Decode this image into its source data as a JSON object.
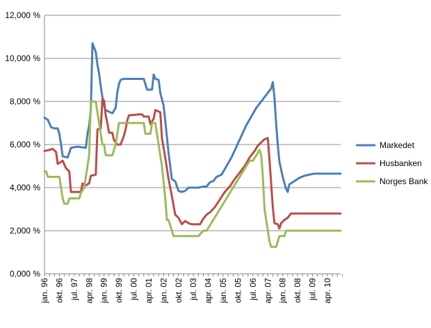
{
  "chart_data": {
    "type": "line",
    "title": "",
    "xlabel": "",
    "ylabel": "",
    "ylim": [
      0,
      12
    ],
    "y_ticks": [
      {
        "value": 0,
        "label": "0,000 %"
      },
      {
        "value": 2,
        "label": "2,000 %"
      },
      {
        "value": 4,
        "label": "4,000 %"
      },
      {
        "value": 6,
        "label": "6,000 %"
      },
      {
        "value": 8,
        "label": "8,000 %"
      },
      {
        "value": 10,
        "label": "10,000 %"
      },
      {
        "value": 12,
        "label": "12,000 %"
      }
    ],
    "grid": "horizontal",
    "legend_position": "right",
    "x_ticks": [
      "jan. 96",
      "okt. 96",
      "jul. 97",
      "apr. 98",
      "jan. 99",
      "okt. 99",
      "jul. 00",
      "apr. 01",
      "jan. 02",
      "okt. 02",
      "jul. 03",
      "apr. 04",
      "jan. 05",
      "okt. 05",
      "jul. 06",
      "apr. 07",
      "jan. 08",
      "okt. 08",
      "jul. 09",
      "apr. 10"
    ],
    "x_range": [
      "jan. 96",
      "des. 10"
    ],
    "series": [
      {
        "name": "Markedet",
        "color": "#4a7ebb",
        "points": [
          [
            "jan. 96",
            7.25
          ],
          [
            "mar. 96",
            7.15
          ],
          [
            "mai 96",
            6.8
          ],
          [
            "jul. 96",
            6.75
          ],
          [
            "sep. 96",
            6.75
          ],
          [
            "okt. 96",
            6.5
          ],
          [
            "nov. 96",
            6.0
          ],
          [
            "des. 96",
            5.45
          ],
          [
            "mar. 97",
            5.4
          ],
          [
            "mai 97",
            5.85
          ],
          [
            "sep. 97",
            5.9
          ],
          [
            "feb. 98",
            5.85
          ],
          [
            "mar. 98",
            6.5
          ],
          [
            "apr. 98",
            6.9
          ],
          [
            "mai 98",
            7.6
          ],
          [
            "jun. 98",
            10.7
          ],
          [
            "jul. 98",
            10.5
          ],
          [
            "aug. 98",
            10.3
          ],
          [
            "sep. 98",
            9.7
          ],
          [
            "okt. 98",
            9.3
          ],
          [
            "nov. 98",
            8.7
          ],
          [
            "des. 98",
            8.2
          ],
          [
            "jan. 99",
            7.8
          ],
          [
            "feb. 99",
            7.6
          ],
          [
            "jun. 99",
            7.45
          ],
          [
            "aug. 99",
            7.7
          ],
          [
            "sep. 99",
            8.4
          ],
          [
            "okt. 99",
            8.8
          ],
          [
            "nov. 99",
            9.0
          ],
          [
            "jan. 00",
            9.05
          ],
          [
            "jul. 00",
            9.05
          ],
          [
            "jan. 01",
            9.05
          ],
          [
            "mar. 01",
            8.55
          ],
          [
            "jun. 01",
            8.55
          ],
          [
            "jul. 01",
            9.25
          ],
          [
            "aug. 01",
            9.05
          ],
          [
            "okt. 01",
            9.0
          ],
          [
            "nov. 01",
            8.4
          ],
          [
            "jan. 02",
            7.8
          ],
          [
            "feb. 02",
            7.1
          ],
          [
            "apr. 02",
            5.6
          ],
          [
            "jun. 02",
            4.4
          ],
          [
            "aug. 02",
            4.3
          ],
          [
            "okt. 02",
            3.85
          ],
          [
            "des. 02",
            3.8
          ],
          [
            "feb. 03",
            3.85
          ],
          [
            "apr. 03",
            4.0
          ],
          [
            "jul. 03",
            4.0
          ],
          [
            "okt. 03",
            4.0
          ],
          [
            "jan. 04",
            4.05
          ],
          [
            "mar. 04",
            4.05
          ],
          [
            "mai 04",
            4.25
          ],
          [
            "jul. 04",
            4.3
          ],
          [
            "sep. 04",
            4.5
          ],
          [
            "des. 04",
            4.6
          ],
          [
            "mar. 05",
            5.0
          ],
          [
            "jun. 05",
            5.4
          ],
          [
            "sep. 05",
            5.9
          ],
          [
            "des. 05",
            6.4
          ],
          [
            "mar. 06",
            6.9
          ],
          [
            "jun. 06",
            7.3
          ],
          [
            "sep. 06",
            7.7
          ],
          [
            "des. 06",
            8.0
          ],
          [
            "mar. 07",
            8.3
          ],
          [
            "jun. 07",
            8.6
          ],
          [
            "jul. 07",
            8.9
          ],
          [
            "aug. 07",
            8.2
          ],
          [
            "sep. 07",
            7.0
          ],
          [
            "okt. 07",
            6.0
          ],
          [
            "nov. 07",
            5.2
          ],
          [
            "jan. 08",
            4.5
          ],
          [
            "mar. 08",
            3.95
          ],
          [
            "apr. 08",
            3.8
          ],
          [
            "mai 08",
            4.15
          ],
          [
            "aug. 08",
            4.3
          ],
          [
            "nov. 08",
            4.45
          ],
          [
            "feb. 09",
            4.55
          ],
          [
            "mai 09",
            4.6
          ],
          [
            "aug. 09",
            4.65
          ],
          [
            "des. 10",
            4.65
          ]
        ]
      },
      {
        "name": "Husbanken",
        "color": "#be4b48",
        "points": [
          [
            "jan. 96",
            5.7
          ],
          [
            "apr. 96",
            5.75
          ],
          [
            "jun. 96",
            5.8
          ],
          [
            "aug. 96",
            5.65
          ],
          [
            "sep. 96",
            5.1
          ],
          [
            "des. 96",
            5.25
          ],
          [
            "feb. 97",
            4.9
          ],
          [
            "apr. 97",
            4.75
          ],
          [
            "mai 97",
            3.8
          ],
          [
            "nov. 97",
            3.8
          ],
          [
            "des. 97",
            4.2
          ],
          [
            "feb. 98",
            4.1
          ],
          [
            "apr. 98",
            4.2
          ],
          [
            "mai 98",
            4.55
          ],
          [
            "aug. 98",
            4.6
          ],
          [
            "sep. 98",
            6.7
          ],
          [
            "nov. 98",
            6.75
          ],
          [
            "des. 98",
            8.1
          ],
          [
            "jan. 99",
            8.05
          ],
          [
            "feb. 99",
            7.35
          ],
          [
            "mar. 99",
            7.0
          ],
          [
            "apr. 99",
            6.55
          ],
          [
            "jun. 99",
            6.55
          ],
          [
            "jul. 99",
            6.2
          ],
          [
            "sep. 99",
            6.0
          ],
          [
            "nov. 99",
            6.0
          ],
          [
            "jan. 00",
            6.4
          ],
          [
            "feb. 00",
            6.7
          ],
          [
            "mar. 00",
            7.1
          ],
          [
            "apr. 00",
            7.35
          ],
          [
            "okt. 00",
            7.4
          ],
          [
            "des. 00",
            7.4
          ],
          [
            "jan. 01",
            7.3
          ],
          [
            "apr. 01",
            7.3
          ],
          [
            "mai 01",
            6.95
          ],
          [
            "jul. 01",
            7.2
          ],
          [
            "aug. 01",
            7.6
          ],
          [
            "nov. 01",
            7.5
          ],
          [
            "des. 01",
            6.3
          ],
          [
            "feb. 02",
            5.4
          ],
          [
            "apr. 02",
            4.4
          ],
          [
            "jun. 02",
            3.6
          ],
          [
            "aug. 02",
            2.75
          ],
          [
            "okt. 02",
            2.6
          ],
          [
            "des. 02",
            2.3
          ],
          [
            "feb. 03",
            2.45
          ],
          [
            "apr. 03",
            2.35
          ],
          [
            "jun. 03",
            2.3
          ],
          [
            "nov. 03",
            2.3
          ],
          [
            "jan. 04",
            2.55
          ],
          [
            "mar. 04",
            2.75
          ],
          [
            "mai 04",
            2.85
          ],
          [
            "aug. 04",
            3.1
          ],
          [
            "nov. 04",
            3.45
          ],
          [
            "feb. 05",
            3.8
          ],
          [
            "mai 05",
            4.05
          ],
          [
            "aug. 05",
            4.4
          ],
          [
            "nov. 05",
            4.7
          ],
          [
            "feb. 06",
            5.0
          ],
          [
            "mai 06",
            5.4
          ],
          [
            "aug. 06",
            5.7
          ],
          [
            "okt. 06",
            5.95
          ],
          [
            "des. 06",
            6.1
          ],
          [
            "feb. 07",
            6.25
          ],
          [
            "apr. 07",
            6.3
          ],
          [
            "mai 07",
            5.3
          ],
          [
            "jun. 07",
            4.2
          ],
          [
            "jul. 07",
            3.1
          ],
          [
            "aug. 07",
            2.35
          ],
          [
            "okt. 07",
            2.3
          ],
          [
            "nov. 07",
            2.1
          ],
          [
            "des. 07",
            2.35
          ],
          [
            "feb. 08",
            2.5
          ],
          [
            "apr. 08",
            2.6
          ],
          [
            "jun. 08",
            2.8
          ],
          [
            "des. 10",
            2.8
          ]
        ]
      },
      {
        "name": "Norges Bank",
        "color": "#9bbb59",
        "points": [
          [
            "jan. 96",
            4.75
          ],
          [
            "feb. 96",
            4.75
          ],
          [
            "mar. 96",
            4.5
          ],
          [
            "okt. 96",
            4.5
          ],
          [
            "nov. 96",
            4.0
          ],
          [
            "des. 96",
            3.5
          ],
          [
            "jan. 97",
            3.25
          ],
          [
            "mar. 97",
            3.25
          ],
          [
            "apr. 97",
            3.5
          ],
          [
            "jul. 97",
            3.5
          ],
          [
            "okt. 97",
            3.5
          ],
          [
            "nov. 97",
            3.75
          ],
          [
            "jan. 98",
            4.0
          ],
          [
            "feb. 98",
            4.5
          ],
          [
            "mar. 98",
            5.0
          ],
          [
            "apr. 98",
            5.5
          ],
          [
            "mai 98",
            8.0
          ],
          [
            "jun. 98",
            8.0
          ],
          [
            "aug. 98",
            8.0
          ],
          [
            "sep. 98",
            7.5
          ],
          [
            "okt. 98",
            7.0
          ],
          [
            "nov. 98",
            6.5
          ],
          [
            "des. 98",
            6.0
          ],
          [
            "jan. 99",
            6.0
          ],
          [
            "feb. 99",
            5.5
          ],
          [
            "mar. 99",
            5.5
          ],
          [
            "mai 99",
            5.5
          ],
          [
            "jun. 99",
            5.5
          ],
          [
            "jul. 99",
            5.75
          ],
          [
            "aug. 99",
            6.0
          ],
          [
            "sep. 99",
            6.5
          ],
          [
            "okt. 99",
            7.0
          ],
          [
            "jul. 00",
            7.0
          ],
          [
            "okt. 00",
            7.0
          ],
          [
            "jan. 01",
            7.0
          ],
          [
            "feb. 01",
            6.5
          ],
          [
            "mai 01",
            6.5
          ],
          [
            "jun. 01",
            7.0
          ],
          [
            "aug. 01",
            7.0
          ],
          [
            "sep. 01",
            6.5
          ],
          [
            "okt. 01",
            6.0
          ],
          [
            "nov. 01",
            5.5
          ],
          [
            "des. 01",
            5.0
          ],
          [
            "jan. 02",
            4.25
          ],
          [
            "feb. 02",
            3.5
          ],
          [
            "mar. 02",
            2.5
          ],
          [
            "apr. 02",
            2.5
          ],
          [
            "mai 02",
            2.25
          ],
          [
            "jun. 02",
            2.0
          ],
          [
            "jul. 02",
            1.75
          ],
          [
            "okt. 03",
            1.75
          ],
          [
            "jan. 04",
            2.0
          ],
          [
            "mar. 04",
            2.0
          ],
          [
            "mai 04",
            2.25
          ],
          [
            "jul. 04",
            2.5
          ],
          [
            "sep. 04",
            2.75
          ],
          [
            "nov. 04",
            3.0
          ],
          [
            "jan. 05",
            3.25
          ],
          [
            "mar. 05",
            3.5
          ],
          [
            "mai 05",
            3.75
          ],
          [
            "jul. 05",
            4.0
          ],
          [
            "sep. 05",
            4.25
          ],
          [
            "nov. 05",
            4.5
          ],
          [
            "jan. 06",
            4.75
          ],
          [
            "mar. 06",
            5.0
          ],
          [
            "mai 06",
            5.25
          ],
          [
            "jul. 06",
            5.25
          ],
          [
            "sep. 06",
            5.5
          ],
          [
            "nov. 06",
            5.75
          ],
          [
            "des. 06",
            5.5
          ],
          [
            "jan. 07",
            4.5
          ],
          [
            "feb. 07",
            3.0
          ],
          [
            "mar. 07",
            2.5
          ],
          [
            "apr. 07",
            2.0
          ],
          [
            "mai 07",
            1.5
          ],
          [
            "jun. 07",
            1.25
          ],
          [
            "sep. 07",
            1.25
          ],
          [
            "okt. 07",
            1.5
          ],
          [
            "nov. 07",
            1.75
          ],
          [
            "feb. 08",
            1.75
          ],
          [
            "mar. 08",
            2.0
          ],
          [
            "des. 10",
            2.0
          ]
        ]
      }
    ]
  }
}
